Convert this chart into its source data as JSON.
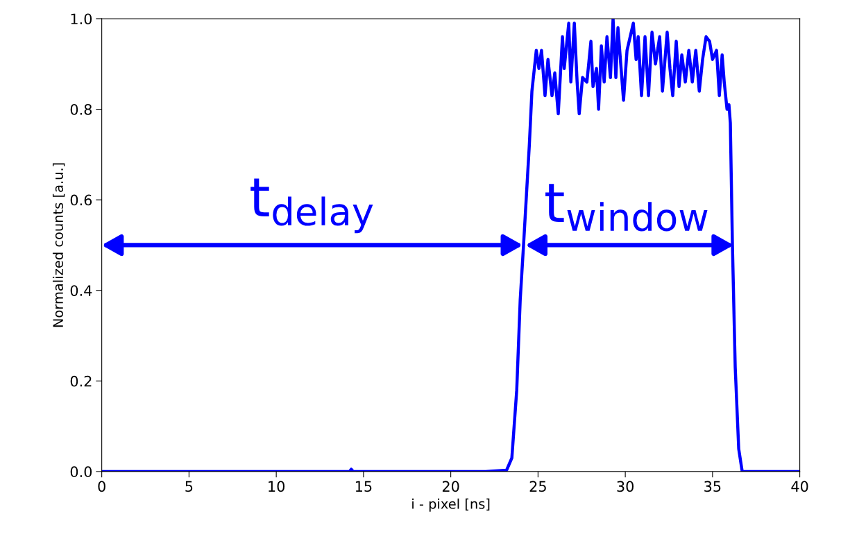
{
  "chart_data": {
    "type": "line",
    "xlabel": "i - pixel [ns]",
    "ylabel": "Normalized counts [a.u.]",
    "xlim": [
      0,
      40
    ],
    "ylim": [
      0,
      1.0
    ],
    "xticks": [
      0,
      5,
      10,
      15,
      20,
      25,
      30,
      35,
      40
    ],
    "yticks": [
      {
        "value": 0,
        "label": "0.0"
      },
      {
        "value": 0.2,
        "label": "0.2"
      },
      {
        "value": 0.4,
        "label": "0.4"
      },
      {
        "value": 0.6,
        "label": "0.6"
      },
      {
        "value": 0.8,
        "label": "0.8"
      },
      {
        "value": 1.0,
        "label": "1.0"
      }
    ],
    "grid": false,
    "legend": false,
    "marker": "none",
    "line_style": "solid",
    "series": [
      {
        "color": "#0000ff",
        "x": [
          0,
          14.2,
          14.3,
          14.4,
          22,
          23.2,
          23.5,
          23.78,
          23.98,
          24.17,
          24.5,
          24.65,
          24.9,
          25.05,
          25.2,
          25.4,
          25.57,
          25.8,
          25.96,
          26.16,
          26.4,
          26.5,
          26.76,
          26.88,
          27.08,
          27.24,
          27.36,
          27.55,
          27.8,
          28.03,
          28.15,
          28.35,
          28.47,
          28.63,
          28.79,
          28.95,
          29.15,
          29.3,
          29.46,
          29.58,
          29.74,
          29.9,
          30.1,
          30.46,
          30.62,
          30.74,
          30.93,
          31.13,
          31.33,
          31.53,
          31.73,
          31.97,
          32.13,
          32.4,
          32.56,
          32.72,
          32.92,
          33.08,
          33.24,
          33.44,
          33.64,
          33.84,
          34.04,
          34.24,
          34.43,
          34.63,
          34.83,
          35.0,
          35.23,
          35.39,
          35.55,
          35.67,
          35.83,
          35.94,
          36.02,
          36.14,
          36.3,
          36.5,
          36.7,
          37,
          40
        ],
        "values": [
          0,
          0,
          0.005,
          0,
          0,
          0.003,
          0.03,
          0.18,
          0.38,
          0.5,
          0.72,
          0.84,
          0.93,
          0.89,
          0.93,
          0.83,
          0.91,
          0.83,
          0.88,
          0.79,
          0.96,
          0.89,
          0.99,
          0.86,
          0.99,
          0.86,
          0.79,
          0.87,
          0.86,
          0.95,
          0.85,
          0.89,
          0.8,
          0.94,
          0.86,
          0.96,
          0.87,
          1.0,
          0.87,
          0.98,
          0.9,
          0.82,
          0.93,
          0.99,
          0.91,
          0.96,
          0.83,
          0.96,
          0.83,
          0.97,
          0.9,
          0.96,
          0.84,
          0.97,
          0.89,
          0.83,
          0.95,
          0.85,
          0.92,
          0.86,
          0.93,
          0.86,
          0.93,
          0.84,
          0.91,
          0.96,
          0.95,
          0.91,
          0.93,
          0.83,
          0.92,
          0.86,
          0.8,
          0.81,
          0.77,
          0.5,
          0.23,
          0.05,
          0,
          0,
          0
        ]
      }
    ],
    "annotations": [
      "t$_{delay}$",
      "t$_{window}$"
    ]
  }
}
